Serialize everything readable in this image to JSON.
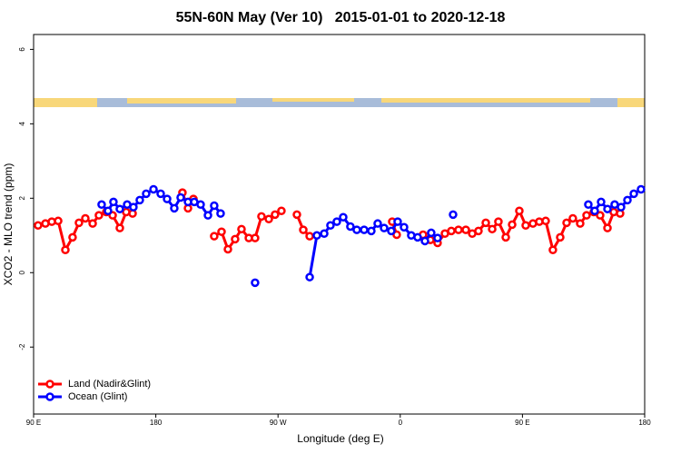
{
  "chart_data": {
    "type": "line",
    "title": "55N-60N May (Ver 10)   2015-01-01 to 2020-12-18",
    "x_label": "Longitude (deg E)",
    "y_label": "XCO2 - MLO trend (ppm)",
    "xlim": [
      90,
      540
    ],
    "ylim": [
      -3.8,
      6.4
    ],
    "xticks": [
      {
        "value": 90,
        "label": "90 E"
      },
      180,
      {
        "value": 270,
        "label": "90 W"
      },
      {
        "value": 360,
        "label": "0"
      },
      {
        "value": 450,
        "label": "90 E"
      },
      180
    ],
    "yticks": [
      6,
      4,
      2,
      0,
      -2
    ],
    "legend": "bottom-left",
    "series": [
      {
        "name": "Land (Nadir&Glint)",
        "color": "#ff0000",
        "x": [
          93.3,
          98.7,
          103.4,
          108.1,
          113.4,
          118.7,
          123.4,
          128.1,
          133.5,
          138.1,
          143.5,
          148.2,
          153.5,
          158.2,
          162.9,
          null,
          199.6,
          203.7,
          207.7,
          null,
          223.0,
          228.4,
          233.1,
          238.4,
          243.1,
          248.5,
          253.1,
          257.8,
          263.2,
          267.8,
          272.5,
          null,
          283.9,
          288.6,
          293.3,
          null,
          354.1,
          357.4,
          null,
          376.8,
          382.2,
          387.5,
          392.9,
          397.6,
          402.9,
          408.3,
          413.0,
          417.6,
          423.0,
          427.7,
          432.3,
          437.7,
          442.4,
          447.7,
          452.4,
          457.7,
          462.4,
          467.1,
          472.4,
          477.8,
          482.5,
          487.1,
          492.5,
          497.2,
          502.5,
          507.2,
          512.6,
          517.2,
          521.9
        ],
        "values": [
          1.27,
          1.32,
          1.37,
          1.39,
          0.61,
          0.95,
          1.34,
          1.46,
          1.32,
          1.54,
          1.63,
          1.54,
          1.2,
          1.63,
          1.59,
          null,
          2.15,
          1.73,
          1.98,
          null,
          0.98,
          1.1,
          0.63,
          0.9,
          1.17,
          0.93,
          0.93,
          1.51,
          1.44,
          1.56,
          1.66,
          null,
          1.56,
          1.15,
          0.98,
          null,
          1.37,
          1.02,
          null,
          1.02,
          0.88,
          0.8,
          1.05,
          1.12,
          1.15,
          1.15,
          1.05,
          1.12,
          1.34,
          1.17,
          1.37,
          0.95,
          1.29,
          1.66,
          1.27,
          1.32,
          1.37,
          1.39,
          0.61,
          0.95,
          1.34,
          1.46,
          1.32,
          1.54,
          1.63,
          1.54,
          1.2,
          1.63,
          1.59
        ]
      },
      {
        "name": "Ocean (Glint)",
        "color": "#0000ff",
        "x": [
          140.1,
          144.8,
          148.8,
          153.5,
          158.9,
          163.5,
          168.2,
          172.9,
          178.3,
          183.6,
          188.3,
          193.6,
          198.3,
          203.7,
          208.3,
          213.0,
          218.4,
          223.0,
          227.7,
          null,
          253.1,
          null,
          293.3,
          298.6,
          304.0,
          308.6,
          313.3,
          318.0,
          323.3,
          328.0,
          333.4,
          338.7,
          343.4,
          348.1,
          353.4,
          358.1,
          362.8,
          368.1,
          372.8,
          378.2,
          382.8,
          387.5,
          null,
          398.9,
          null,
          498.5,
          503.2,
          507.9,
          512.6,
          517.9,
          522.6,
          527.3,
          532.0,
          537.3
        ],
        "values": [
          1.83,
          1.66,
          1.9,
          1.71,
          1.83,
          1.76,
          1.95,
          2.12,
          2.24,
          2.12,
          1.98,
          1.73,
          2.02,
          1.9,
          1.9,
          1.83,
          1.54,
          1.8,
          1.59,
          null,
          -0.27,
          null,
          -0.12,
          1.0,
          1.05,
          1.27,
          1.37,
          1.49,
          1.24,
          1.15,
          1.15,
          1.12,
          1.32,
          1.2,
          1.12,
          1.37,
          1.22,
          1.0,
          0.95,
          0.85,
          1.07,
          0.93,
          null,
          1.56,
          null,
          1.83,
          1.66,
          1.9,
          1.71,
          1.83,
          1.76,
          1.95,
          2.12,
          2.24
        ]
      }
    ]
  }
}
